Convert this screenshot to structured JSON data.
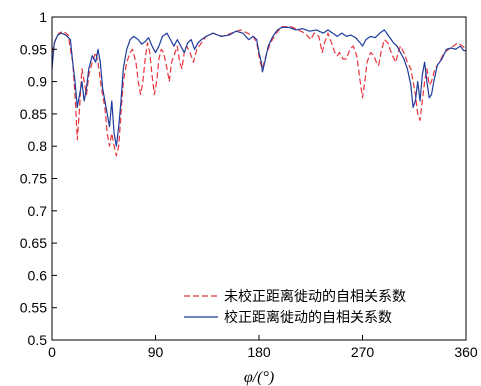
{
  "chart_data": {
    "type": "line",
    "xlabel": "φ/(°)",
    "xlim": [
      0,
      360
    ],
    "ylim": [
      0.5,
      1.0
    ],
    "x_ticks": [
      0,
      90,
      180,
      270,
      360
    ],
    "x_tick_labels": [
      "0",
      "90",
      "180",
      "270",
      "360"
    ],
    "y_ticks": [
      0.5,
      0.55,
      0.6,
      0.65,
      0.7,
      0.75,
      0.8,
      0.85,
      0.9,
      0.95,
      1.0
    ],
    "y_tick_labels": [
      "0.5",
      "0.55",
      "0.6",
      "0.65",
      "0.7",
      "0.75",
      "0.8",
      "0.85",
      "0.9",
      "0.95",
      "1"
    ],
    "grid": false,
    "legend_position": "bottom-right",
    "series": [
      {
        "name": "未校正距离徙动的自相关系数",
        "color": "#e8343c",
        "dash": "dashed",
        "points": [
          [
            0,
            0.945
          ],
          [
            3,
            0.965
          ],
          [
            6,
            0.975
          ],
          [
            10,
            0.978
          ],
          [
            14,
            0.972
          ],
          [
            18,
            0.93
          ],
          [
            20,
            0.88
          ],
          [
            22,
            0.81
          ],
          [
            24,
            0.86
          ],
          [
            26,
            0.92
          ],
          [
            28,
            0.9
          ],
          [
            30,
            0.88
          ],
          [
            32,
            0.91
          ],
          [
            35,
            0.93
          ],
          [
            38,
            0.945
          ],
          [
            40,
            0.93
          ],
          [
            43,
            0.89
          ],
          [
            46,
            0.86
          ],
          [
            48,
            0.82
          ],
          [
            50,
            0.8
          ],
          [
            52,
            0.82
          ],
          [
            54,
            0.8
          ],
          [
            56,
            0.785
          ],
          [
            58,
            0.8
          ],
          [
            60,
            0.85
          ],
          [
            62,
            0.9
          ],
          [
            65,
            0.93
          ],
          [
            68,
            0.945
          ],
          [
            70,
            0.95
          ],
          [
            73,
            0.93
          ],
          [
            75,
            0.9
          ],
          [
            77,
            0.88
          ],
          [
            79,
            0.9
          ],
          [
            81,
            0.935
          ],
          [
            83,
            0.96
          ],
          [
            85,
            0.945
          ],
          [
            87,
            0.91
          ],
          [
            89,
            0.88
          ],
          [
            91,
            0.9
          ],
          [
            93,
            0.935
          ],
          [
            95,
            0.95
          ],
          [
            97,
            0.945
          ],
          [
            100,
            0.92
          ],
          [
            102,
            0.9
          ],
          [
            104,
            0.93
          ],
          [
            106,
            0.94
          ],
          [
            109,
            0.955
          ],
          [
            111,
            0.93
          ],
          [
            113,
            0.92
          ],
          [
            115,
            0.945
          ],
          [
            117,
            0.955
          ],
          [
            120,
            0.945
          ],
          [
            123,
            0.93
          ],
          [
            126,
            0.95
          ],
          [
            130,
            0.96
          ],
          [
            134,
            0.97
          ],
          [
            140,
            0.975
          ],
          [
            148,
            0.97
          ],
          [
            156,
            0.975
          ],
          [
            164,
            0.98
          ],
          [
            170,
            0.975
          ],
          [
            175,
            0.97
          ],
          [
            178,
            0.96
          ],
          [
            181,
            0.93
          ],
          [
            183,
            0.92
          ],
          [
            186,
            0.94
          ],
          [
            190,
            0.96
          ],
          [
            195,
            0.975
          ],
          [
            200,
            0.985
          ],
          [
            208,
            0.985
          ],
          [
            214,
            0.98
          ],
          [
            220,
            0.975
          ],
          [
            225,
            0.965
          ],
          [
            228,
            0.975
          ],
          [
            232,
            0.97
          ],
          [
            235,
            0.945
          ],
          [
            237,
            0.96
          ],
          [
            240,
            0.975
          ],
          [
            243,
            0.96
          ],
          [
            246,
            0.945
          ],
          [
            248,
            0.94
          ],
          [
            250,
            0.945
          ],
          [
            253,
            0.935
          ],
          [
            256,
            0.935
          ],
          [
            259,
            0.95
          ],
          [
            262,
            0.955
          ],
          [
            265,
            0.94
          ],
          [
            268,
            0.9
          ],
          [
            270,
            0.875
          ],
          [
            272,
            0.9
          ],
          [
            274,
            0.93
          ],
          [
            277,
            0.945
          ],
          [
            280,
            0.94
          ],
          [
            282,
            0.93
          ],
          [
            284,
            0.925
          ],
          [
            286,
            0.945
          ],
          [
            289,
            0.965
          ],
          [
            292,
            0.96
          ],
          [
            294,
            0.95
          ],
          [
            296,
            0.94
          ],
          [
            299,
            0.93
          ],
          [
            301,
            0.945
          ],
          [
            303,
            0.955
          ],
          [
            306,
            0.945
          ],
          [
            309,
            0.93
          ],
          [
            312,
            0.92
          ],
          [
            314,
            0.9
          ],
          [
            316,
            0.88
          ],
          [
            318,
            0.85
          ],
          [
            320,
            0.84
          ],
          [
            322,
            0.87
          ],
          [
            324,
            0.9
          ],
          [
            326,
            0.92
          ],
          [
            328,
            0.895
          ],
          [
            330,
            0.9
          ],
          [
            333,
            0.92
          ],
          [
            337,
            0.93
          ],
          [
            341,
            0.945
          ],
          [
            345,
            0.95
          ],
          [
            349,
            0.955
          ],
          [
            353,
            0.96
          ],
          [
            357,
            0.955
          ],
          [
            360,
            0.95
          ]
        ]
      },
      {
        "name": "校正距离徙动的自相关系数",
        "color": "#1f3c9c",
        "dash": "solid",
        "points": [
          [
            0,
            0.92
          ],
          [
            2,
            0.96
          ],
          [
            5,
            0.972
          ],
          [
            8,
            0.975
          ],
          [
            12,
            0.972
          ],
          [
            16,
            0.965
          ],
          [
            18,
            0.93
          ],
          [
            20,
            0.9
          ],
          [
            22,
            0.86
          ],
          [
            24,
            0.88
          ],
          [
            26,
            0.9
          ],
          [
            28,
            0.87
          ],
          [
            30,
            0.89
          ],
          [
            32,
            0.92
          ],
          [
            35,
            0.94
          ],
          [
            38,
            0.93
          ],
          [
            40,
            0.95
          ],
          [
            42,
            0.93
          ],
          [
            44,
            0.89
          ],
          [
            46,
            0.87
          ],
          [
            48,
            0.85
          ],
          [
            50,
            0.83
          ],
          [
            52,
            0.87
          ],
          [
            54,
            0.82
          ],
          [
            56,
            0.8
          ],
          [
            58,
            0.83
          ],
          [
            60,
            0.87
          ],
          [
            62,
            0.92
          ],
          [
            65,
            0.95
          ],
          [
            68,
            0.965
          ],
          [
            71,
            0.97
          ],
          [
            75,
            0.965
          ],
          [
            78,
            0.958
          ],
          [
            81,
            0.962
          ],
          [
            84,
            0.968
          ],
          [
            87,
            0.955
          ],
          [
            90,
            0.945
          ],
          [
            93,
            0.955
          ],
          [
            96,
            0.97
          ],
          [
            100,
            0.975
          ],
          [
            103,
            0.965
          ],
          [
            106,
            0.955
          ],
          [
            109,
            0.965
          ],
          [
            112,
            0.955
          ],
          [
            115,
            0.945
          ],
          [
            118,
            0.96
          ],
          [
            121,
            0.965
          ],
          [
            124,
            0.95
          ],
          [
            127,
            0.96
          ],
          [
            130,
            0.965
          ],
          [
            134,
            0.97
          ],
          [
            140,
            0.975
          ],
          [
            147,
            0.97
          ],
          [
            154,
            0.972
          ],
          [
            160,
            0.978
          ],
          [
            166,
            0.975
          ],
          [
            171,
            0.965
          ],
          [
            175,
            0.97
          ],
          [
            178,
            0.965
          ],
          [
            180,
            0.945
          ],
          [
            182,
            0.93
          ],
          [
            183,
            0.915
          ],
          [
            185,
            0.93
          ],
          [
            188,
            0.955
          ],
          [
            192,
            0.97
          ],
          [
            196,
            0.98
          ],
          [
            200,
            0.984
          ],
          [
            206,
            0.984
          ],
          [
            212,
            0.98
          ],
          [
            218,
            0.982
          ],
          [
            224,
            0.978
          ],
          [
            230,
            0.98
          ],
          [
            236,
            0.975
          ],
          [
            240,
            0.98
          ],
          [
            244,
            0.975
          ],
          [
            248,
            0.97
          ],
          [
            252,
            0.975
          ],
          [
            256,
            0.97
          ],
          [
            260,
            0.972
          ],
          [
            264,
            0.968
          ],
          [
            268,
            0.96
          ],
          [
            270,
            0.955
          ],
          [
            273,
            0.965
          ],
          [
            277,
            0.97
          ],
          [
            281,
            0.968
          ],
          [
            285,
            0.975
          ],
          [
            289,
            0.98
          ],
          [
            293,
            0.97
          ],
          [
            297,
            0.96
          ],
          [
            300,
            0.955
          ],
          [
            303,
            0.945
          ],
          [
            306,
            0.935
          ],
          [
            309,
            0.92
          ],
          [
            312,
            0.895
          ],
          [
            314,
            0.86
          ],
          [
            316,
            0.87
          ],
          [
            318,
            0.9
          ],
          [
            320,
            0.87
          ],
          [
            322,
            0.91
          ],
          [
            324,
            0.93
          ],
          [
            326,
            0.9
          ],
          [
            328,
            0.875
          ],
          [
            330,
            0.88
          ],
          [
            332,
            0.9
          ],
          [
            335,
            0.925
          ],
          [
            339,
            0.935
          ],
          [
            343,
            0.95
          ],
          [
            347,
            0.952
          ],
          [
            351,
            0.95
          ],
          [
            355,
            0.955
          ],
          [
            358,
            0.948
          ],
          [
            360,
            0.948
          ]
        ]
      }
    ]
  }
}
